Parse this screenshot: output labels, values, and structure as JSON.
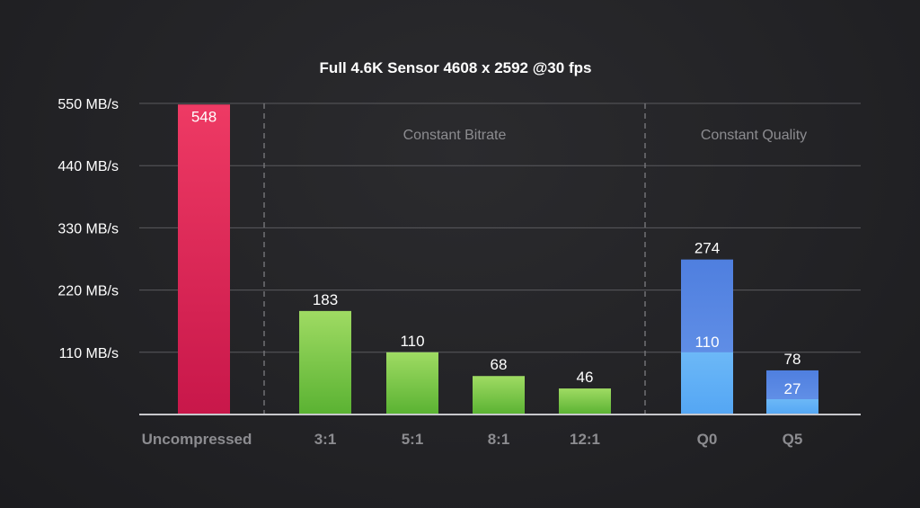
{
  "chart_data": {
    "type": "bar",
    "title": "Full 4.6K Sensor 4608 x 2592 @30 fps",
    "xlabel": "",
    "ylabel": "",
    "ylim": [
      0,
      550
    ],
    "yticks": [
      {
        "value": 110,
        "label": "110 MB/s"
      },
      {
        "value": 220,
        "label": "220 MB/s"
      },
      {
        "value": 330,
        "label": "330 MB/s"
      },
      {
        "value": 440,
        "label": "440 MB/s"
      },
      {
        "value": 550,
        "label": "550 MB/s"
      }
    ],
    "grid": true,
    "categories": [
      "Uncompressed",
      "3:1",
      "5:1",
      "8:1",
      "12:1",
      "Q0",
      "Q5"
    ],
    "values": [
      548,
      183,
      110,
      68,
      46,
      274,
      78
    ],
    "value_labels": [
      "548",
      "183",
      "110",
      "68",
      "46",
      "274",
      "78"
    ],
    "inner_values": [
      null,
      null,
      null,
      null,
      null,
      110,
      27
    ],
    "inner_labels": [
      "",
      "",
      "",
      "",
      "",
      "110",
      "27"
    ],
    "group_of_bar": [
      0,
      1,
      1,
      1,
      1,
      2,
      2
    ],
    "label_inside": [
      true,
      false,
      false,
      false,
      false,
      false,
      false
    ],
    "sections": [
      {
        "label": "",
        "bars": [
          0
        ]
      },
      {
        "label": "Constant Bitrate",
        "bars": [
          1,
          2,
          3,
          4
        ]
      },
      {
        "label": "Constant Quality",
        "bars": [
          5,
          6
        ]
      }
    ],
    "colors": {
      "uncompressed_top": "#ee3a64",
      "uncompressed_bottom": "#c8174a",
      "bitrate_top": "#9fdb63",
      "bitrate_bottom": "#5ab232",
      "quality_top": "#4f7fdf",
      "quality_bottom": "#6a97ea",
      "quality_inner_top": "#6cb8f7",
      "quality_inner_bottom": "#54a6f4",
      "axis": "#c8c8cc",
      "grid": "#5a5a5e",
      "divider": "#7c7c80"
    }
  }
}
